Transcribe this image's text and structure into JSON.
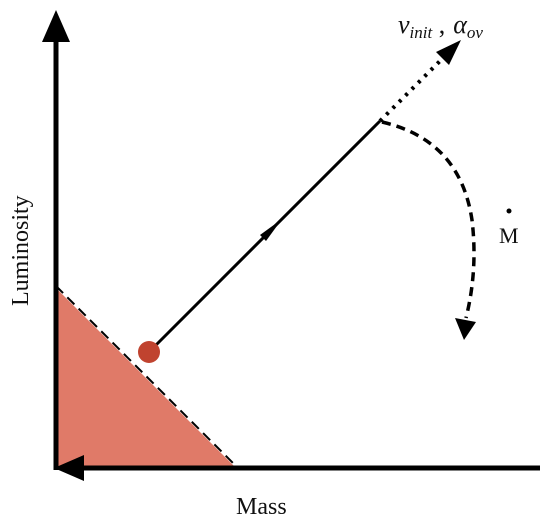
{
  "axes": {
    "x_label": "Mass",
    "y_label": "Luminosity"
  },
  "parameters": {
    "v_symbol": "v",
    "v_subscript": "init",
    "separator": " ,",
    "alpha_symbol": "α",
    "alpha_subscript": "ov"
  },
  "mdot_label": "M",
  "colors": {
    "region_fill": "#e07a68",
    "start_point": "#c0432f",
    "ink": "#000000"
  }
}
